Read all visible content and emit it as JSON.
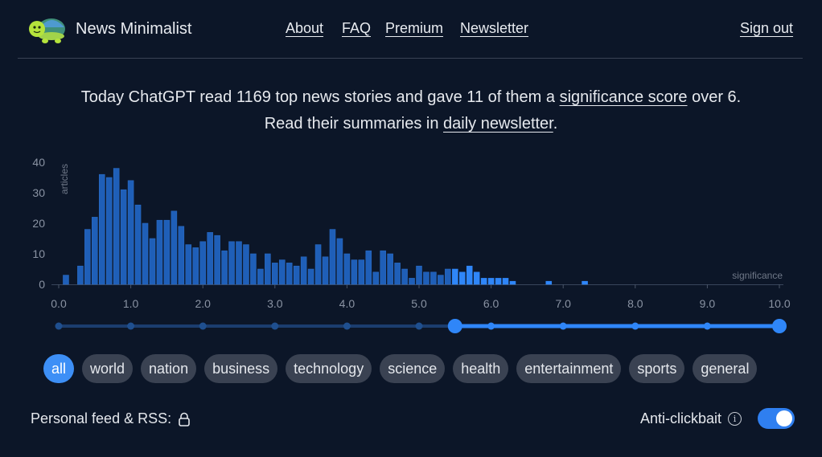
{
  "header": {
    "brand": "News Minimalist",
    "nav": [
      {
        "label": "About"
      },
      {
        "label": "FAQ"
      },
      {
        "label": "Premium"
      },
      {
        "label": "Newsletter"
      }
    ],
    "sign_out": "Sign out"
  },
  "intro": {
    "line1_prefix": "Today ChatGPT read 1169 top news stories and gave 11 of them a ",
    "line1_link": "significance score",
    "line1_suffix": " over 6.",
    "line2_prefix": "Read their summaries in ",
    "line2_link": "daily newsletter",
    "line2_suffix": "."
  },
  "chart_data": {
    "type": "bar",
    "ylabel": "articles",
    "xlabel": "significance",
    "ylim": [
      0,
      40
    ],
    "yticks": [
      0,
      10,
      20,
      30,
      40
    ],
    "xlim": [
      0,
      10
    ],
    "xticks": [
      "0.0",
      "1.0",
      "2.0",
      "3.0",
      "4.0",
      "5.0",
      "6.0",
      "7.0",
      "8.0",
      "9.0",
      "10.0"
    ],
    "bin_width": 0.1,
    "highlight_from": 5.5,
    "colors": {
      "dim": "#1f5fb8",
      "bright": "#2f86f8"
    },
    "bins": [
      {
        "x": 0.1,
        "y": 3
      },
      {
        "x": 0.3,
        "y": 6
      },
      {
        "x": 0.4,
        "y": 18
      },
      {
        "x": 0.5,
        "y": 22
      },
      {
        "x": 0.6,
        "y": 36
      },
      {
        "x": 0.7,
        "y": 35
      },
      {
        "x": 0.8,
        "y": 38
      },
      {
        "x": 0.9,
        "y": 31
      },
      {
        "x": 1.0,
        "y": 34
      },
      {
        "x": 1.1,
        "y": 26
      },
      {
        "x": 1.2,
        "y": 20
      },
      {
        "x": 1.3,
        "y": 15
      },
      {
        "x": 1.4,
        "y": 21
      },
      {
        "x": 1.5,
        "y": 21
      },
      {
        "x": 1.6,
        "y": 24
      },
      {
        "x": 1.7,
        "y": 19
      },
      {
        "x": 1.8,
        "y": 13
      },
      {
        "x": 1.9,
        "y": 12
      },
      {
        "x": 2.0,
        "y": 14
      },
      {
        "x": 2.1,
        "y": 17
      },
      {
        "x": 2.2,
        "y": 16
      },
      {
        "x": 2.3,
        "y": 11
      },
      {
        "x": 2.4,
        "y": 14
      },
      {
        "x": 2.5,
        "y": 14
      },
      {
        "x": 2.6,
        "y": 13
      },
      {
        "x": 2.7,
        "y": 10
      },
      {
        "x": 2.8,
        "y": 5
      },
      {
        "x": 2.9,
        "y": 10
      },
      {
        "x": 3.0,
        "y": 7
      },
      {
        "x": 3.1,
        "y": 8
      },
      {
        "x": 3.2,
        "y": 7
      },
      {
        "x": 3.3,
        "y": 6
      },
      {
        "x": 3.4,
        "y": 9
      },
      {
        "x": 3.5,
        "y": 5
      },
      {
        "x": 3.6,
        "y": 13
      },
      {
        "x": 3.7,
        "y": 9
      },
      {
        "x": 3.8,
        "y": 18
      },
      {
        "x": 3.9,
        "y": 15
      },
      {
        "x": 4.0,
        "y": 10
      },
      {
        "x": 4.1,
        "y": 8
      },
      {
        "x": 4.2,
        "y": 8
      },
      {
        "x": 4.3,
        "y": 11
      },
      {
        "x": 4.4,
        "y": 4
      },
      {
        "x": 4.5,
        "y": 11
      },
      {
        "x": 4.6,
        "y": 10
      },
      {
        "x": 4.7,
        "y": 7
      },
      {
        "x": 4.8,
        "y": 5
      },
      {
        "x": 4.9,
        "y": 2
      },
      {
        "x": 5.0,
        "y": 6
      },
      {
        "x": 5.1,
        "y": 4
      },
      {
        "x": 5.2,
        "y": 4
      },
      {
        "x": 5.3,
        "y": 3
      },
      {
        "x": 5.4,
        "y": 5
      },
      {
        "x": 5.5,
        "y": 5
      },
      {
        "x": 5.6,
        "y": 4
      },
      {
        "x": 5.7,
        "y": 6
      },
      {
        "x": 5.8,
        "y": 4
      },
      {
        "x": 5.9,
        "y": 2
      },
      {
        "x": 6.0,
        "y": 2
      },
      {
        "x": 6.1,
        "y": 2
      },
      {
        "x": 6.2,
        "y": 2
      },
      {
        "x": 6.3,
        "y": 1
      },
      {
        "x": 6.8,
        "y": 1
      },
      {
        "x": 7.3,
        "y": 1
      }
    ]
  },
  "slider": {
    "min": 0,
    "max": 10,
    "range": [
      5.5,
      10
    ],
    "dots": [
      0,
      1,
      2,
      3,
      4,
      5,
      6,
      7,
      8,
      9
    ]
  },
  "categories": [
    {
      "label": "all",
      "active": true
    },
    {
      "label": "world"
    },
    {
      "label": "nation"
    },
    {
      "label": "business"
    },
    {
      "label": "technology"
    },
    {
      "label": "science"
    },
    {
      "label": "health"
    },
    {
      "label": "entertainment"
    },
    {
      "label": "sports"
    },
    {
      "label": "general"
    }
  ],
  "footer": {
    "feed_label": "Personal feed & RSS:",
    "anti_clickbait_label": "Anti-clickbait",
    "anti_clickbait_on": true
  }
}
